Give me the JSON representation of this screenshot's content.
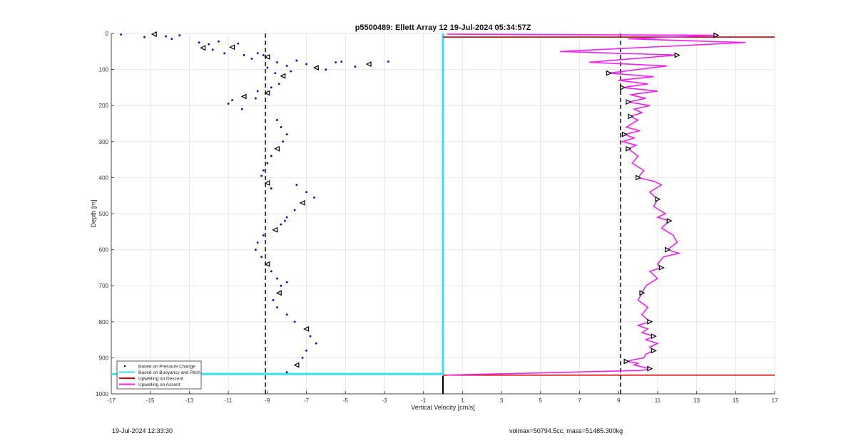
{
  "footer": {
    "timestamp": "19-Jul-2024 12:33:30",
    "vol_mass": "volmax=50794.5cc, mass=51485.300kg"
  },
  "chart_data": {
    "type": "scatter",
    "title": "p5500489: Ellett Array 12 19-Jul-2024 05:34:57Z",
    "xlabel": "Vertical Velocity [cm/s]",
    "ylabel": "Depth [m]",
    "xlim": [
      -17,
      17
    ],
    "ylim": [
      0,
      1000
    ],
    "y_reversed": true,
    "grid": true,
    "xticks": [
      -17,
      -15,
      -13,
      -11,
      -9,
      -7,
      -5,
      -3,
      -1,
      1,
      3,
      5,
      7,
      9,
      11,
      13,
      15,
      17
    ],
    "yticks": [
      0,
      100,
      200,
      300,
      400,
      500,
      600,
      700,
      800,
      900,
      1000
    ],
    "legend_position": "bottom-left",
    "colors": {
      "pressure": "#0000cc",
      "buoyancy": "#33e0f0",
      "descent": "#cc0000",
      "ascent": "#ee22ee",
      "reference": "#000000"
    },
    "legend": [
      {
        "label": "Based on Pressure Change",
        "style": "dot",
        "color": "#000000"
      },
      {
        "label": "Based on Buoyancy and Pitch",
        "style": "line",
        "color": "#33e0f0"
      },
      {
        "label": "Upwelling on Descent",
        "style": "line",
        "color": "#cc0000"
      },
      {
        "label": "Upwelling on Ascent",
        "style": "line",
        "color": "#ee22ee"
      }
    ],
    "reference_lines": [
      {
        "name": "mean-descent-velocity",
        "x": -9.1,
        "style": "dashed"
      },
      {
        "name": "mean-ascent-velocity",
        "x": 9.1,
        "style": "dashed"
      },
      {
        "name": "zero-velocity",
        "x": 0,
        "style": "solid",
        "ylim": [
          950,
          1000
        ]
      }
    ],
    "series": [
      {
        "name": "Based on Pressure Change (descent)",
        "type": "scatter",
        "x": [
          -16.5,
          -15.3,
          -14.8,
          -14.2,
          -13.9,
          -13.5,
          -12.5,
          -12.3,
          -12.0,
          -11.8,
          -11.5,
          -11.2,
          -10.8,
          -10.5,
          -10.2,
          -9.8,
          -9.5,
          -9.0,
          -8.5,
          -8.0,
          -7.5,
          -7.0,
          -6.5,
          -6.0,
          -5.5,
          -5.2,
          -4.5,
          -3.8,
          -2.8,
          -9.2,
          -9.0,
          -8.6,
          -8.2,
          -7.8,
          -8.4,
          -8.8,
          -9.5,
          -10.2,
          -10.8,
          -11.0,
          -10.3,
          -9.6,
          -9.0,
          -8.5,
          -8.3,
          -8.0,
          -8.2,
          -8.5,
          -8.8,
          -9.0,
          -9.2,
          -9.3,
          -9.0,
          -8.8,
          -7.5,
          -7.0,
          -6.6,
          -7.2,
          -7.6,
          -8.0,
          -8.3,
          -8.1,
          -8.6,
          -9.2,
          -9.5,
          -9.6,
          -9.3,
          -9.0,
          -8.8,
          -8.5,
          -8.3,
          -8.0,
          -8.4,
          -8.7,
          -8.5,
          -8.0,
          -7.6,
          -7.0,
          -6.8,
          -6.5,
          -7.0,
          -7.2,
          -7.5,
          -8.0
        ],
        "y": [
          3,
          10,
          2,
          8,
          15,
          5,
          25,
          40,
          30,
          45,
          22,
          55,
          38,
          28,
          60,
          70,
          55,
          65,
          80,
          90,
          75,
          85,
          95,
          100,
          80,
          78,
          92,
          85,
          78,
          60,
          95,
          110,
          118,
          105,
          140,
          150,
          160,
          175,
          185,
          195,
          210,
          180,
          165,
          240,
          260,
          280,
          300,
          320,
          340,
          360,
          380,
          395,
          415,
          430,
          420,
          440,
          455,
          470,
          490,
          510,
          530,
          520,
          545,
          560,
          580,
          600,
          620,
          640,
          660,
          680,
          700,
          690,
          720,
          740,
          760,
          780,
          800,
          820,
          840,
          860,
          880,
          900,
          920,
          940
        ]
      },
      {
        "name": "Upwelling on Ascent",
        "type": "line",
        "x": [
          0.2,
          14.0,
          9.5,
          15.5,
          6.0,
          12.0,
          7.5,
          11.5,
          10.0,
          8.5,
          10.8,
          9.0,
          10.5,
          9.2,
          11.0,
          9.6,
          10.4,
          9.5,
          10.6,
          9.8,
          10.2,
          9.6,
          10.0,
          9.4,
          10.1,
          9.3,
          9.8,
          9.2,
          9.9,
          9.5,
          10.0,
          9.7,
          10.3,
          10.0,
          10.8,
          11.2,
          10.6,
          11.0,
          10.8,
          11.4,
          11.0,
          11.6,
          11.2,
          11.8,
          12.0,
          11.5,
          12.1,
          11.3,
          11.0,
          11.2,
          10.6,
          11.0,
          10.4,
          10.2,
          10.0,
          10.5,
          10.2,
          10.6,
          10.0,
          10.5,
          10.2,
          10.8,
          10.4,
          11.0,
          10.6,
          10.8,
          10.4,
          10.3,
          9.8,
          9.4,
          10.0,
          9.8,
          10.2,
          10.6,
          10.2,
          0.2
        ],
        "y": [
          2,
          5,
          15,
          25,
          50,
          60,
          80,
          90,
          100,
          110,
          120,
          130,
          140,
          150,
          160,
          170,
          180,
          190,
          200,
          210,
          220,
          230,
          240,
          260,
          270,
          280,
          290,
          300,
          310,
          320,
          340,
          360,
          380,
          400,
          410,
          420,
          440,
          460,
          480,
          500,
          510,
          520,
          540,
          560,
          580,
          600,
          610,
          620,
          640,
          650,
          660,
          680,
          700,
          720,
          740,
          760,
          780,
          800,
          810,
          820,
          830,
          840,
          850,
          860,
          870,
          880,
          890,
          900,
          905,
          910,
          915,
          920,
          925,
          930,
          935,
          948
        ]
      },
      {
        "name": "Based on Buoyancy and Pitch",
        "type": "line",
        "segments": [
          {
            "x": [
              0,
              0
            ],
            "y": [
              0,
              945
            ]
          },
          {
            "x": [
              -17,
              0
            ],
            "y": [
              945,
              945
            ]
          }
        ]
      },
      {
        "name": "Upwelling on Descent",
        "type": "line",
        "segments": [
          {
            "x": [
              0,
              17
            ],
            "y": [
              10,
              10
            ]
          },
          {
            "x": [
              0,
              17
            ],
            "y": [
              948,
              948
            ]
          }
        ]
      }
    ]
  }
}
